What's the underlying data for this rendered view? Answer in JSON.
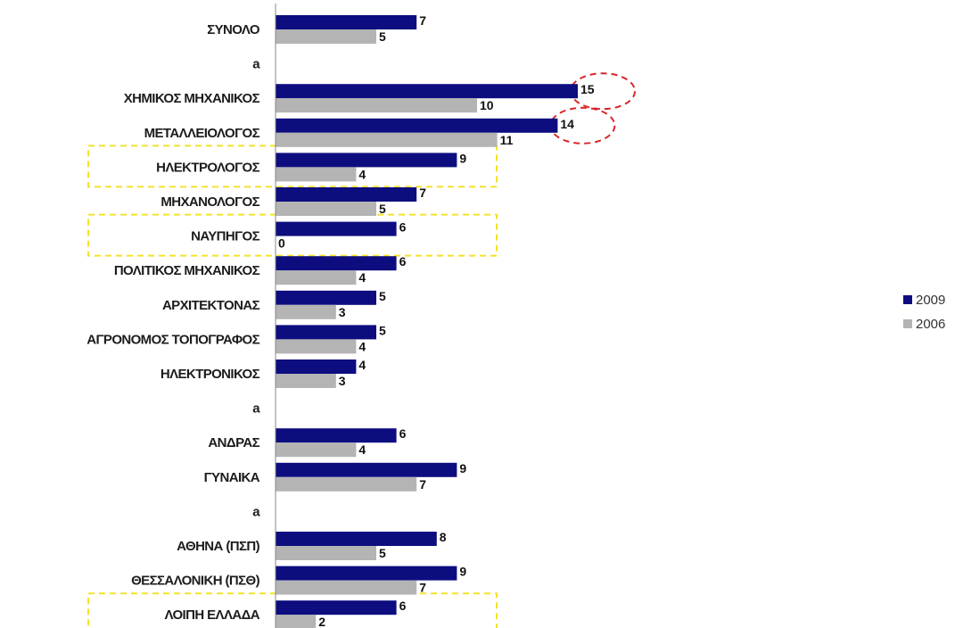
{
  "chart_data": {
    "type": "bar",
    "orientation": "horizontal",
    "categories": [
      "ΣΥΝΟΛΟ",
      "a",
      "ΧΗΜΙΚΟΣ ΜΗΧΑΝΙΚΟΣ",
      "ΜΕΤΑΛΛΕΙΟΛΟΓΟΣ",
      "ΗΛΕΚΤΡΟΛΟΓΟΣ",
      "ΜΗΧΑΝΟΛΟΓΟΣ",
      "ΝΑΥΠΗΓΟΣ",
      "ΠΟΛΙΤΙΚΟΣ ΜΗΧΑΝΙΚΟΣ",
      "ΑΡΧΙΤΕΚΤΟΝΑΣ",
      "ΑΓΡΟΝΟΜΟΣ ΤΟΠΟΓΡΑΦΟΣ",
      "ΗΛΕΚΤΡΟΝΙΚΟΣ",
      "a",
      "ΑΝΔΡΑΣ",
      "ΓΥΝΑΙΚΑ",
      "a",
      "ΑΘΗΝΑ (ΠΣΠ)",
      "ΘΕΣΣΑΛΟΝΙΚΗ (ΠΣΘ)",
      "ΛΟΙΠΗ ΕΛΛΑΔΑ"
    ],
    "series": [
      {
        "name": "2009",
        "color": "#0d0d80",
        "values": [
          7,
          null,
          15,
          14,
          9,
          7,
          6,
          6,
          5,
          5,
          4,
          null,
          6,
          9,
          null,
          8,
          9,
          6
        ]
      },
      {
        "name": "2006",
        "color": "#b4b4b4",
        "values": [
          5,
          null,
          10,
          11,
          4,
          5,
          0,
          4,
          3,
          4,
          3,
          null,
          4,
          7,
          null,
          5,
          7,
          2
        ]
      }
    ],
    "xlim": [
      0,
      16
    ],
    "grid": false,
    "legend_position": "right",
    "highlight_circles_2009": [
      "ΧΗΜΙΚΟΣ ΜΗΧΑΝΙΚΟΣ",
      "ΜΕΤΑΛΛΕΙΟΛΟΓΟΣ"
    ],
    "highlight_boxes": [
      "ΗΛΕΚΤΡΟΛΟΓΟΣ",
      "ΝΑΥΠΗΓΟΣ",
      "ΛΟΙΠΗ ΕΛΛΑΔΑ"
    ],
    "circle_color": "#d9262a",
    "box_color": "#f2e22a"
  }
}
